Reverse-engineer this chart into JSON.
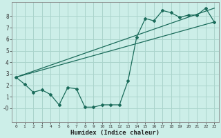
{
  "xlabel": "Humidex (Indice chaleur)",
  "ylabel": "",
  "bg_color": "#cceee8",
  "line_color": "#1a6b5a",
  "grid_color": "#aad4cc",
  "xlim": [
    -0.5,
    23.5
  ],
  "ylim": [
    -1.2,
    9.2
  ],
  "xticks": [
    0,
    1,
    2,
    3,
    4,
    5,
    6,
    7,
    8,
    9,
    10,
    11,
    12,
    13,
    14,
    15,
    16,
    17,
    18,
    19,
    20,
    21,
    22,
    23
  ],
  "yticks": [
    0,
    1,
    2,
    3,
    4,
    5,
    6,
    7,
    8
  ],
  "ytick_labels": [
    "-0",
    "1",
    "2",
    "3",
    "4",
    "5",
    "6",
    "7",
    "8"
  ],
  "line1_x": [
    0,
    23
  ],
  "line1_y": [
    2.7,
    7.5
  ],
  "line2_x": [
    0,
    23
  ],
  "line2_y": [
    2.7,
    8.7
  ],
  "zigzag_x": [
    0,
    1,
    2,
    3,
    4,
    5,
    6,
    7,
    8,
    9,
    10,
    11,
    12,
    13,
    14,
    15,
    16,
    17,
    18,
    19,
    20,
    21,
    22,
    23
  ],
  "zigzag_y": [
    2.7,
    2.1,
    1.4,
    1.6,
    1.2,
    0.3,
    1.8,
    1.7,
    0.1,
    0.1,
    0.3,
    0.3,
    0.3,
    2.4,
    6.2,
    7.8,
    7.6,
    8.5,
    8.3,
    7.9,
    8.1,
    8.1,
    8.7,
    7.5
  ]
}
